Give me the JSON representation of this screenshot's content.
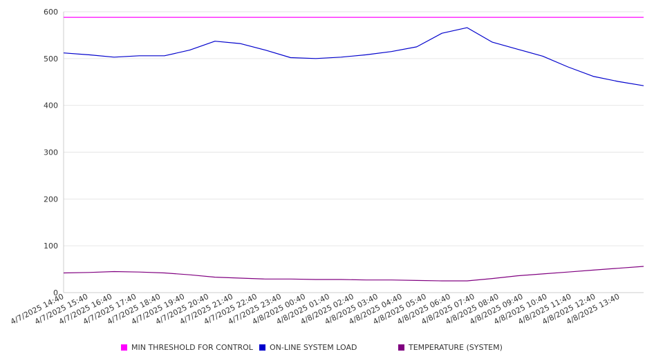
{
  "chart_data": {
    "type": "line",
    "title": "",
    "xlabel": "",
    "ylabel": "",
    "ylim": [
      0,
      600
    ],
    "y_ticks": [
      0,
      100,
      200,
      300,
      400,
      500,
      600
    ],
    "grid": "horizontal",
    "legend_position": "bottom",
    "x_tick_labels": [
      "4/7/2025 14:40",
      "4/7/2025 15:40",
      "4/7/2025 16:40",
      "4/7/2025 17:40",
      "4/7/2025 18:40",
      "4/7/2025 19:40",
      "4/7/2025 20:40",
      "4/7/2025 21:40",
      "4/7/2025 22:40",
      "4/7/2025 23:40",
      "4/8/2025 00:40",
      "4/8/2025 01:40",
      "4/8/2025 02:40",
      "4/8/2025 03:40",
      "4/8/2025 04:40",
      "4/8/2025 05:40",
      "4/8/2025 06:40",
      "4/8/2025 07:40",
      "4/8/2025 08:40",
      "4/8/2025 09:40",
      "4/8/2025 10:40",
      "4/8/2025 11:40",
      "4/8/2025 12:40",
      "4/8/2025 13:40"
    ],
    "series": [
      {
        "name": "MIN THRESHOLD FOR CONTROL",
        "color": "#ff00ff",
        "values": [
          588,
          588,
          588,
          588,
          588,
          588,
          588,
          588,
          588,
          588,
          588,
          588,
          588,
          588,
          588,
          588,
          588,
          588,
          588,
          588,
          588,
          588,
          588,
          588
        ]
      },
      {
        "name": "ON-LINE SYSTEM LOAD",
        "color": "#0000cc",
        "values": [
          512,
          508,
          503,
          506,
          506,
          518,
          537,
          532,
          518,
          502,
          500,
          503,
          508,
          515,
          525,
          554,
          566,
          535,
          520,
          505,
          482,
          462,
          451,
          442
        ]
      },
      {
        "name": "TEMPERATURE (SYSTEM)",
        "color": "#800080",
        "values": [
          42,
          43,
          45,
          44,
          42,
          38,
          33,
          31,
          29,
          29,
          28,
          28,
          27,
          27,
          26,
          25,
          25,
          30,
          36,
          40,
          44,
          48,
          52,
          56
        ]
      }
    ]
  }
}
